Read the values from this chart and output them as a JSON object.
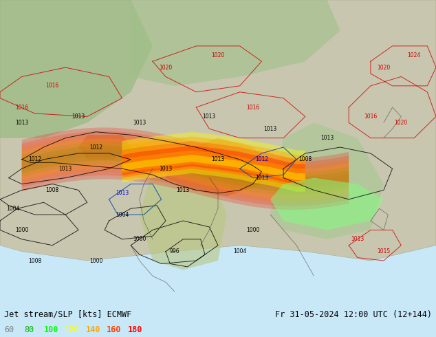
{
  "title_left": "Jet stream/SLP [kts] ECMWF",
  "title_right": "Fr 31-05-2024 12:00 UTC (12+144)",
  "legend_values": [
    60,
    80,
    100,
    120,
    140,
    160,
    180
  ],
  "legend_colors": [
    "#808080",
    "#00b400",
    "#00ff00",
    "#ffff00",
    "#ffa500",
    "#ff4000",
    "#ff0000"
  ],
  "bg_color": "#c8e8f8",
  "fig_width": 6.34,
  "fig_height": 4.9,
  "dpi": 100,
  "label_fontsize": 8.5,
  "legend_fontsize": 8.5,
  "map_area_color": "#b8d8b8",
  "ocean_color": "#c8e8f8",
  "land_color": "#d8c8a8",
  "mountain_color": "#c8a878",
  "text_color_black": "#000000",
  "text_color_red": "#cc0000",
  "text_color_blue": "#0000cc",
  "contour_black": "#000000",
  "contour_red": "#cc0000",
  "contour_blue": "#0044aa",
  "jet_colors": [
    "#808080",
    "#00b400",
    "#00ff00",
    "#ffff00",
    "#ffa500",
    "#ff4000",
    "#ff0000"
  ],
  "jet_levels": [
    60,
    80,
    100,
    120,
    140,
    160,
    180
  ],
  "pressure_labels_black": [
    "1013",
    "1013",
    "1012",
    "1013",
    "1013",
    "1008",
    "1004",
    "1000",
    "1004",
    "1008",
    "1008",
    "1004",
    "1000",
    "996",
    "1000",
    "1000",
    "1004",
    "1008",
    "1012"
  ],
  "pressure_labels_red": [
    "1020",
    "1016",
    "1016",
    "1020",
    "1024",
    "1016",
    "1013",
    "1015"
  ],
  "pressure_labels_blue": [
    "1012",
    "1013"
  ]
}
